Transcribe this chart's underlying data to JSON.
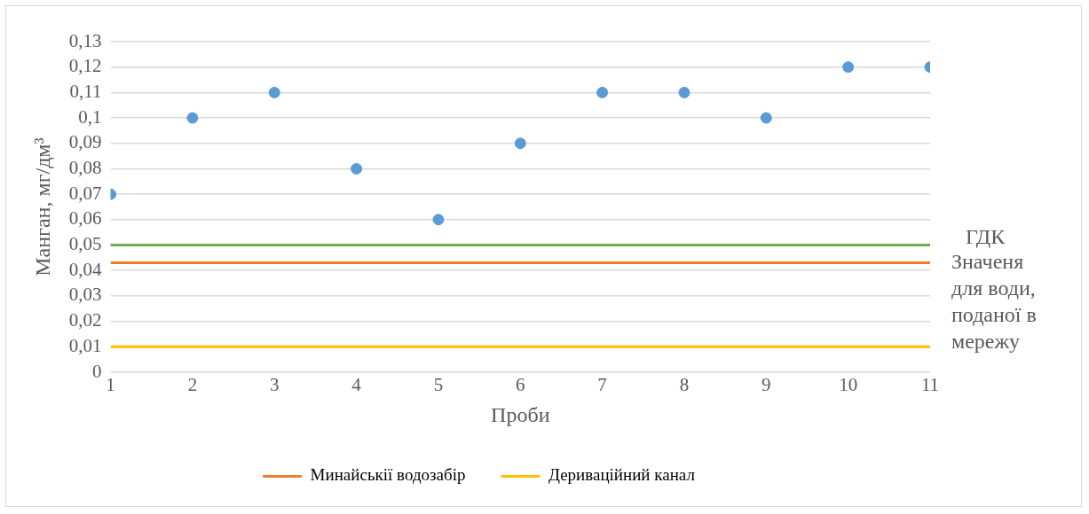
{
  "chart_data": {
    "type": "scatter",
    "xlabel": "Проби",
    "ylabel": "Манган, мг/дм³",
    "x": [
      1,
      2,
      3,
      4,
      5,
      6,
      7,
      8,
      9,
      10,
      11
    ],
    "xlim": [
      1,
      11
    ],
    "xticks": [
      1,
      2,
      3,
      4,
      5,
      6,
      7,
      8,
      9,
      10,
      11
    ],
    "ylim": [
      0,
      0.13
    ],
    "yticks": [
      0,
      {
        "value": 0.01,
        "label": "0,01"
      },
      {
        "value": 0.02,
        "label": "0,02"
      },
      {
        "value": 0.03,
        "label": "0,03"
      },
      {
        "value": 0.04,
        "label": "0,04"
      },
      {
        "value": 0.05,
        "label": "0,05"
      },
      {
        "value": 0.06,
        "label": "0,06"
      },
      {
        "value": 0.07,
        "label": "0,07"
      },
      {
        "value": 0.08,
        "label": "0,08"
      },
      {
        "value": 0.09,
        "label": "0,09"
      },
      {
        "value": 0.1,
        "label": "0,1"
      },
      {
        "value": 0.11,
        "label": "0,11"
      },
      {
        "value": 0.12,
        "label": "0,12"
      },
      {
        "value": 0.13,
        "label": "0,13"
      }
    ],
    "series": [
      {
        "color": "#5b9bd5",
        "values": [
          0.07,
          0.1,
          0.11,
          0.08,
          0.06,
          0.09,
          0.11,
          0.11,
          0.1,
          0.12,
          0.12
        ]
      },
      {
        "type": "line",
        "marker": "none",
        "name": "Минайськії водозабір",
        "color": "#ed7d31",
        "values": [
          0.043,
          0.043,
          0.043,
          0.043,
          0.043,
          0.043,
          0.043,
          0.043,
          0.043,
          0.043,
          0.043
        ]
      },
      {
        "type": "line",
        "marker": "none",
        "name": "Дериваційний канал",
        "color": "#ffc000",
        "values": [
          0.01,
          0.01,
          0.01,
          0.01,
          0.01,
          0.01,
          0.01,
          0.01,
          0.01,
          0.01,
          0.01
        ]
      }
    ],
    "ref_lines": [
      {
        "axis": "y",
        "value": 0.05,
        "label": "ГДК",
        "color": "#70ad47"
      }
    ],
    "annotations": [
      "Значеня для води, поданої в мережу"
    ],
    "grid": "y",
    "legend": "bottom",
    "marker": "circle"
  }
}
